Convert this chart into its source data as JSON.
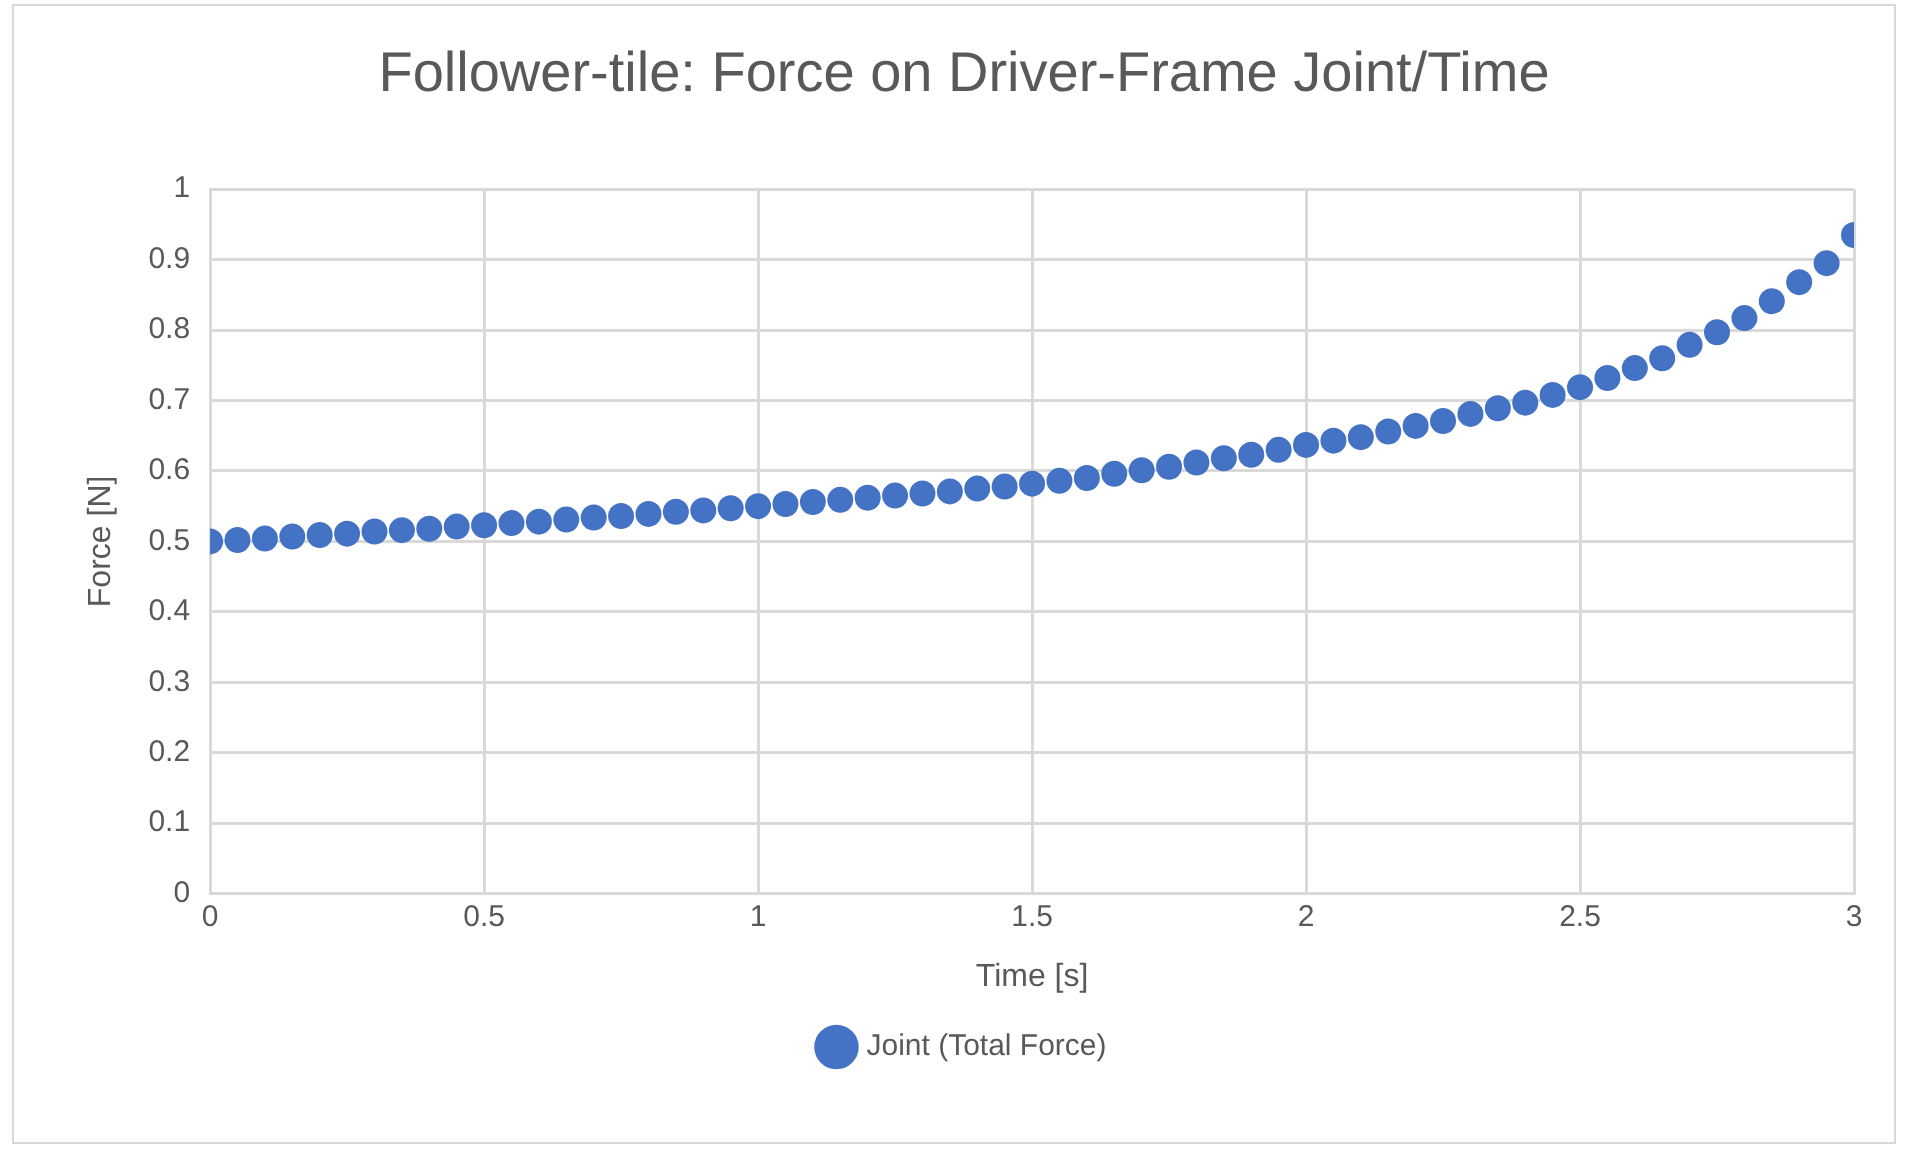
{
  "chart_data": {
    "type": "scatter",
    "title": "Follower-tile: Force on Driver-Frame Joint/Time",
    "xlabel": "Time [s]",
    "ylabel": "Force [N]",
    "x": [
      0,
      0.05,
      0.1,
      0.15,
      0.2,
      0.25,
      0.3,
      0.35,
      0.4,
      0.45,
      0.5,
      0.55,
      0.6,
      0.65,
      0.7,
      0.75,
      0.8,
      0.85,
      0.9,
      0.95,
      1,
      1.05,
      1.1,
      1.15,
      1.2,
      1.25,
      1.3,
      1.35,
      1.4,
      1.45,
      1.5,
      1.55,
      1.6,
      1.65,
      1.7,
      1.75,
      1.8,
      1.85,
      1.9,
      1.95,
      2,
      2.05,
      2.1,
      2.15,
      2.2,
      2.25,
      2.3,
      2.35,
      2.4,
      2.45,
      2.5,
      2.55,
      2.6,
      2.65,
      2.7,
      2.75,
      2.8,
      2.85,
      2.9,
      2.95,
      3
    ],
    "series": [
      {
        "name": "Joint (Total Force)",
        "color": "#4472c4",
        "values": [
          0.5,
          0.502,
          0.504,
          0.507,
          0.509,
          0.511,
          0.514,
          0.516,
          0.518,
          0.521,
          0.523,
          0.526,
          0.528,
          0.531,
          0.534,
          0.536,
          0.539,
          0.542,
          0.544,
          0.547,
          0.55,
          0.553,
          0.556,
          0.559,
          0.562,
          0.565,
          0.568,
          0.571,
          0.575,
          0.578,
          0.582,
          0.586,
          0.59,
          0.596,
          0.601,
          0.606,
          0.612,
          0.618,
          0.623,
          0.63,
          0.637,
          0.643,
          0.648,
          0.656,
          0.664,
          0.671,
          0.681,
          0.689,
          0.697,
          0.708,
          0.719,
          0.732,
          0.746,
          0.76,
          0.779,
          0.797,
          0.817,
          0.841,
          0.868,
          0.895,
          0.935
        ]
      }
    ],
    "xlim": [
      0,
      3
    ],
    "xticks": [
      0,
      0.5,
      1,
      1.5,
      2,
      2.5,
      3
    ],
    "ylim": [
      0,
      1
    ],
    "yticks": [
      0,
      0.1,
      0.2,
      0.3,
      0.4,
      0.5,
      0.6,
      0.7,
      0.8,
      0.9,
      1
    ],
    "grid": true,
    "legend": "bottom",
    "marker": "circle"
  }
}
